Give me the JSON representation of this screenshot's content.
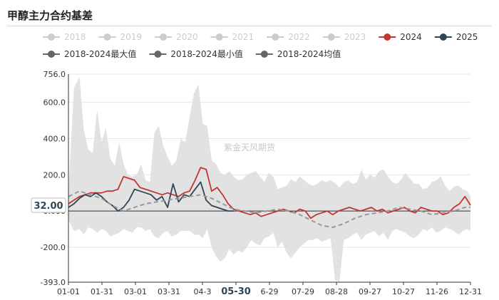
{
  "title": "甲醇主力合约基差",
  "watermark": "紫金天风期货",
  "chart_data": {
    "type": "line",
    "y_ticks": [
      -393.0,
      -200.0,
      0.0,
      200.0,
      400.0,
      600.0,
      756.0
    ],
    "y_tick_labels": [
      "-393.0",
      "-200.0",
      "0.000",
      "200.0",
      "400.0",
      "600.0",
      "756.0"
    ],
    "ylim": [
      -393.0,
      756.0
    ],
    "x_ticks": [
      "01-01",
      "01-31",
      "03-01",
      "03-31",
      "04-3",
      "05-30",
      "6-29",
      "07-29",
      "08-28",
      "09-27",
      "10-27",
      "11-26",
      "12-31"
    ],
    "x_highlight": "05-30",
    "current_value": "32.00",
    "grid": "horizontal",
    "legend": [
      {
        "name": "2018",
        "color": "#cccccc",
        "active": false
      },
      {
        "name": "2019",
        "color": "#cccccc",
        "active": false
      },
      {
        "name": "2020",
        "color": "#cccccc",
        "active": false
      },
      {
        "name": "2021",
        "color": "#cccccc",
        "active": false
      },
      {
        "name": "2022",
        "color": "#cccccc",
        "active": false
      },
      {
        "name": "2023",
        "color": "#cccccc",
        "active": false
      },
      {
        "name": "2024",
        "color": "#c23531",
        "active": true
      },
      {
        "name": "2025",
        "color": "#2f4554",
        "active": true
      },
      {
        "name": "2018-2024最大值",
        "color": "#666666",
        "active": true
      },
      {
        "name": "2018-2024最小值",
        "color": "#666666",
        "active": true
      },
      {
        "name": "2018-2024均值",
        "color": "#666666",
        "active": true
      }
    ],
    "legend_placement": "top",
    "range_band": {
      "x": [
        0,
        5,
        10,
        14,
        18,
        22,
        26,
        30,
        34,
        38,
        42,
        46,
        50,
        54,
        58,
        62,
        66,
        70,
        74,
        78,
        82,
        86,
        90,
        94,
        98,
        102,
        106,
        110,
        114,
        118,
        122,
        126,
        130,
        134,
        138,
        142,
        146,
        150,
        154,
        158,
        162,
        166,
        170,
        174,
        178,
        182,
        186,
        190,
        194,
        198,
        202,
        206,
        210,
        214,
        218,
        222,
        226,
        230,
        234,
        238,
        242,
        246,
        250,
        254,
        258,
        262,
        266,
        270,
        274,
        278,
        282,
        286,
        290,
        294,
        298,
        302,
        306,
        310,
        314,
        318,
        322,
        326,
        330,
        334,
        338,
        342,
        346,
        350,
        354,
        358,
        362,
        365
      ],
      "max": [
        100,
        680,
        740,
        450,
        340,
        320,
        560,
        380,
        460,
        290,
        250,
        380,
        260,
        200,
        190,
        200,
        260,
        170,
        160,
        430,
        470,
        360,
        300,
        250,
        280,
        400,
        380,
        520,
        650,
        700,
        480,
        470,
        280,
        260,
        210,
        200,
        220,
        190,
        170,
        175,
        200,
        210,
        220,
        190,
        160,
        210,
        190,
        120,
        130,
        140,
        175,
        160,
        190,
        170,
        150,
        140,
        150,
        170,
        160,
        170,
        155,
        130,
        160,
        170,
        150,
        160,
        230,
        175,
        200,
        185,
        220,
        230,
        190,
        160,
        150,
        175,
        210,
        180,
        150,
        150,
        120,
        130,
        160,
        170,
        190,
        140,
        110,
        135,
        140,
        120,
        110,
        80
      ],
      "min": [
        -50,
        -110,
        -100,
        -130,
        -90,
        -100,
        -120,
        -100,
        -110,
        -140,
        -130,
        -120,
        -100,
        -110,
        -120,
        -90,
        -90,
        -110,
        -100,
        -140,
        -150,
        -120,
        -110,
        -140,
        -130,
        -110,
        -110,
        -110,
        -130,
        -130,
        -150,
        -100,
        -200,
        -250,
        -280,
        -260,
        -210,
        -240,
        -220,
        -230,
        -200,
        -160,
        -180,
        -190,
        -150,
        -140,
        -120,
        -200,
        -170,
        -230,
        -260,
        -230,
        -200,
        -180,
        -160,
        -160,
        -150,
        -170,
        -160,
        -150,
        -380,
        -393,
        -160,
        -150,
        -130,
        -120,
        -160,
        -130,
        -120,
        -110,
        -140,
        -120,
        -160,
        -110,
        -100,
        -110,
        -120,
        -140,
        -150,
        -130,
        -100,
        -110,
        -90,
        -120,
        -110,
        -90,
        -100,
        -110,
        -130,
        -110,
        -100,
        -110
      ]
    },
    "series": [
      {
        "name": "2024",
        "color": "#c23531",
        "style": "solid",
        "x": [
          0,
          5,
          10,
          15,
          20,
          25,
          30,
          35,
          40,
          45,
          50,
          55,
          60,
          65,
          70,
          75,
          80,
          85,
          90,
          95,
          100,
          105,
          110,
          115,
          120,
          125,
          130,
          135,
          140,
          145,
          150,
          155,
          160,
          165,
          170,
          175,
          180,
          185,
          190,
          195,
          200,
          205,
          210,
          215,
          220,
          225,
          230,
          235,
          240,
          245,
          250,
          255,
          260,
          265,
          270,
          275,
          280,
          285,
          290,
          295,
          300,
          305,
          310,
          315,
          320,
          325,
          330,
          335,
          340,
          345,
          350,
          355,
          360,
          365
        ],
        "y": [
          40,
          60,
          80,
          90,
          100,
          100,
          100,
          110,
          110,
          120,
          190,
          180,
          170,
          130,
          120,
          110,
          100,
          90,
          100,
          90,
          80,
          100,
          110,
          170,
          240,
          230,
          110,
          130,
          90,
          40,
          10,
          0,
          -10,
          -20,
          -10,
          -30,
          -20,
          -10,
          0,
          10,
          0,
          -10,
          10,
          0,
          -40,
          -20,
          -10,
          0,
          -20,
          0,
          10,
          20,
          10,
          0,
          10,
          20,
          0,
          10,
          -10,
          0,
          10,
          20,
          0,
          -10,
          20,
          10,
          0,
          0,
          -20,
          -10,
          20,
          40,
          80,
          32
        ]
      },
      {
        "name": "2025",
        "color": "#2f4554",
        "style": "solid",
        "x": [
          0,
          5,
          10,
          15,
          20,
          25,
          30,
          35,
          40,
          45,
          50,
          55,
          60,
          65,
          70,
          75,
          80,
          85,
          90,
          95,
          100,
          105,
          110,
          115,
          120,
          125,
          130,
          135,
          140,
          145,
          150
        ],
        "y": [
          20,
          40,
          70,
          90,
          80,
          100,
          80,
          50,
          30,
          0,
          20,
          60,
          120,
          110,
          100,
          90,
          60,
          80,
          20,
          150,
          50,
          90,
          80,
          120,
          160,
          60,
          30,
          20,
          10,
          0,
          0
        ]
      },
      {
        "name": "2018-2024均值",
        "color": "#999999",
        "style": "dashed",
        "x": [
          0,
          10,
          20,
          30,
          40,
          50,
          60,
          70,
          80,
          90,
          100,
          110,
          120,
          130,
          140,
          150,
          160,
          170,
          180,
          190,
          200,
          210,
          220,
          230,
          240,
          250,
          260,
          270,
          280,
          290,
          300,
          310,
          320,
          330,
          340,
          350,
          360,
          365
        ],
        "y": [
          80,
          110,
          90,
          70,
          30,
          0,
          20,
          40,
          50,
          60,
          70,
          80,
          90,
          70,
          40,
          10,
          0,
          -10,
          0,
          10,
          0,
          -20,
          -50,
          -80,
          -90,
          -70,
          -40,
          -20,
          -10,
          0,
          20,
          10,
          0,
          -20,
          -10,
          0,
          20,
          20
        ]
      }
    ]
  }
}
